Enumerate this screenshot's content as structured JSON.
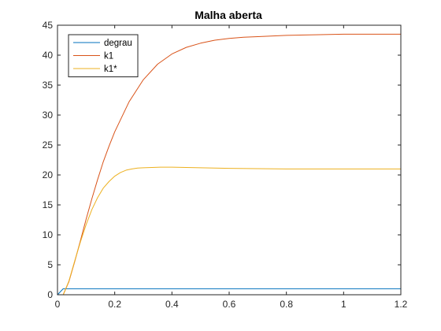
{
  "chart_data": {
    "type": "line",
    "title": "Malha aberta",
    "xlabel": "",
    "ylabel": "",
    "xlim": [
      0,
      1.2
    ],
    "ylim": [
      0,
      45
    ],
    "xticks": [
      0,
      0.2,
      0.4,
      0.6,
      0.8,
      1,
      1.2
    ],
    "xtick_labels": [
      "0",
      "0.2",
      "0.4",
      "0.6",
      "0.8",
      "1",
      "1.2"
    ],
    "yticks": [
      0,
      5,
      10,
      15,
      20,
      25,
      30,
      35,
      40,
      45
    ],
    "ytick_labels": [
      "0",
      "5",
      "10",
      "15",
      "20",
      "25",
      "30",
      "35",
      "40",
      "45"
    ],
    "grid": false,
    "legend_position": "top-left",
    "series": [
      {
        "name": "degrau",
        "color": "#0072BD",
        "x": [
          0,
          0.02,
          1.2
        ],
        "y": [
          0,
          1,
          1
        ]
      },
      {
        "name": "k1",
        "color": "#D95319",
        "x": [
          0.02,
          0.04,
          0.06,
          0.08,
          0.1,
          0.12,
          0.14,
          0.16,
          0.18,
          0.2,
          0.25,
          0.3,
          0.35,
          0.4,
          0.45,
          0.5,
          0.55,
          0.6,
          0.65,
          0.7,
          0.8,
          0.9,
          1.0,
          1.1,
          1.2
        ],
        "y": [
          0,
          2.2,
          5.5,
          9.0,
          12.6,
          16.0,
          19.2,
          22.2,
          24.8,
          27.2,
          32.2,
          35.9,
          38.5,
          40.2,
          41.3,
          42.0,
          42.5,
          42.8,
          43.0,
          43.1,
          43.3,
          43.4,
          43.5,
          43.5,
          43.5
        ]
      },
      {
        "name": "k1*",
        "color": "#EDB120",
        "x": [
          0.02,
          0.04,
          0.06,
          0.08,
          0.1,
          0.12,
          0.14,
          0.16,
          0.18,
          0.2,
          0.22,
          0.24,
          0.26,
          0.28,
          0.3,
          0.33,
          0.36,
          0.4,
          0.45,
          0.5,
          0.6,
          0.7,
          0.8,
          1.0,
          1.2
        ],
        "y": [
          0,
          2.3,
          5.6,
          8.8,
          11.7,
          14.2,
          16.2,
          17.8,
          18.9,
          19.8,
          20.4,
          20.8,
          21.0,
          21.15,
          21.2,
          21.25,
          21.3,
          21.3,
          21.25,
          21.2,
          21.1,
          21.05,
          21.0,
          21.0,
          21.0
        ]
      }
    ]
  }
}
